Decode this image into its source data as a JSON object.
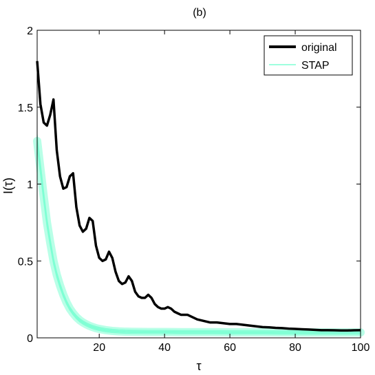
{
  "chart_data": {
    "type": "line",
    "title": "(b)",
    "xlabel": "τ",
    "ylabel": "I(τ)",
    "xlim": [
      1,
      100
    ],
    "ylim": [
      0,
      2
    ],
    "xticks": [
      20,
      40,
      60,
      80,
      100
    ],
    "xtick_labels": [
      "20",
      "40",
      "60",
      "80",
      "100"
    ],
    "yticks": [
      0,
      0.5,
      1,
      1.5,
      2
    ],
    "ytick_labels": [
      "0",
      "0.5",
      "1",
      "1.5",
      "2"
    ],
    "grid": false,
    "legend_position": "top-right",
    "series": [
      {
        "name": "original",
        "color": "#000000",
        "x": [
          1,
          2,
          3,
          4,
          5,
          6,
          7,
          8,
          9,
          10,
          11,
          12,
          13,
          14,
          15,
          16,
          17,
          18,
          19,
          20,
          21,
          22,
          23,
          24,
          25,
          26,
          27,
          28,
          29,
          30,
          31,
          32,
          33,
          34,
          35,
          36,
          37,
          38,
          39,
          40,
          41,
          42,
          43,
          44,
          45,
          46,
          47,
          48,
          49,
          50,
          52,
          54,
          56,
          58,
          60,
          62,
          64,
          66,
          68,
          70,
          72,
          74,
          76,
          78,
          80,
          82,
          84,
          86,
          88,
          90,
          92,
          94,
          96,
          98,
          100
        ],
        "y": [
          1.8,
          1.52,
          1.4,
          1.38,
          1.45,
          1.55,
          1.22,
          1.05,
          0.97,
          0.98,
          1.05,
          1.07,
          0.85,
          0.73,
          0.69,
          0.71,
          0.78,
          0.76,
          0.6,
          0.52,
          0.5,
          0.51,
          0.56,
          0.52,
          0.43,
          0.37,
          0.35,
          0.36,
          0.4,
          0.37,
          0.3,
          0.27,
          0.26,
          0.26,
          0.28,
          0.26,
          0.22,
          0.2,
          0.19,
          0.19,
          0.2,
          0.19,
          0.17,
          0.16,
          0.15,
          0.15,
          0.15,
          0.14,
          0.13,
          0.12,
          0.11,
          0.1,
          0.1,
          0.095,
          0.09,
          0.09,
          0.085,
          0.08,
          0.075,
          0.07,
          0.068,
          0.065,
          0.063,
          0.06,
          0.058,
          0.056,
          0.054,
          0.052,
          0.05,
          0.05,
          0.049,
          0.048,
          0.048,
          0.049,
          0.05
        ]
      },
      {
        "name": "STAP",
        "color": "#7fffd4",
        "x": [
          1,
          2,
          3,
          4,
          5,
          6,
          7,
          8,
          9,
          10,
          11,
          12,
          13,
          14,
          15,
          16,
          17,
          18,
          19,
          20,
          22,
          24,
          26,
          28,
          30,
          35,
          40,
          45,
          50,
          55,
          60,
          65,
          70,
          75,
          80,
          85,
          90,
          95,
          100
        ],
        "y": [
          1.28,
          1.1,
          0.92,
          0.75,
          0.62,
          0.5,
          0.41,
          0.34,
          0.28,
          0.23,
          0.19,
          0.16,
          0.135,
          0.115,
          0.1,
          0.088,
          0.078,
          0.07,
          0.063,
          0.058,
          0.05,
          0.045,
          0.042,
          0.04,
          0.039,
          0.038,
          0.038,
          0.037,
          0.037,
          0.037,
          0.036,
          0.036,
          0.036,
          0.035,
          0.035,
          0.035,
          0.035,
          0.035,
          0.035
        ]
      }
    ]
  }
}
